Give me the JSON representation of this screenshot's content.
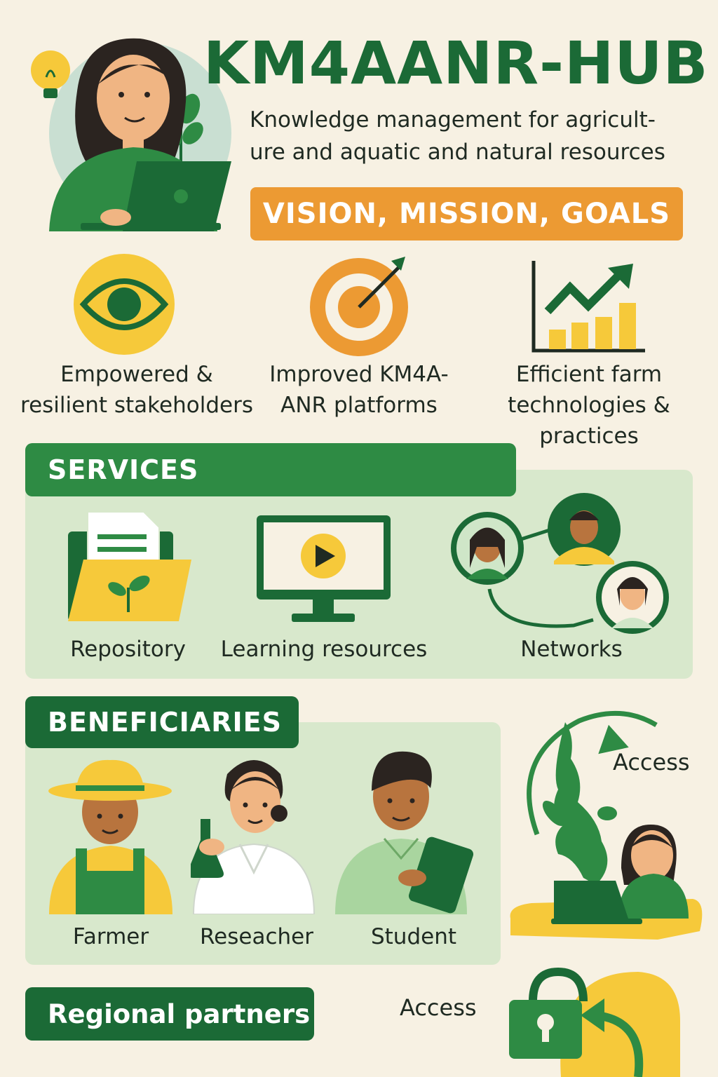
{
  "header": {
    "title": "KM4AANR-HUB",
    "subtitle_line1": "Knowledge management for agricult-",
    "subtitle_line2": "ure and aquatic and natural resources"
  },
  "vmg": {
    "label": "VISION, MISSION, GOALS",
    "goals": [
      {
        "line1": "Empowered &",
        "line2": "resilient stakeholders",
        "icon": "eye-icon"
      },
      {
        "line1": "Improved KM4A-",
        "line2": "ANR platforms",
        "icon": "target-icon"
      },
      {
        "line1": "Efficient farm",
        "line2": "technologies &",
        "line3": "practices",
        "icon": "growth-chart-icon"
      }
    ]
  },
  "services": {
    "heading": "SERVICES",
    "items": [
      {
        "label": "Repository",
        "icon": "folder-icon"
      },
      {
        "label": "Learning resources",
        "icon": "monitor-play-icon"
      },
      {
        "label": "Networks",
        "icon": "network-icon"
      }
    ]
  },
  "beneficiaries": {
    "heading": "BENEFICIARIES",
    "items": [
      {
        "label": "Farmer"
      },
      {
        "label": "Reseacher"
      },
      {
        "label": "Student"
      }
    ]
  },
  "access": {
    "label_map": "Access",
    "label_lock": "Access"
  },
  "partners": {
    "label": "Regional partners"
  },
  "colors": {
    "green": "#1b6a36",
    "mid_green": "#2e8b44",
    "orange": "#ec9a33",
    "yellow": "#f6c93a",
    "panel": "#d8e8cc",
    "background": "#f7f1e3"
  }
}
